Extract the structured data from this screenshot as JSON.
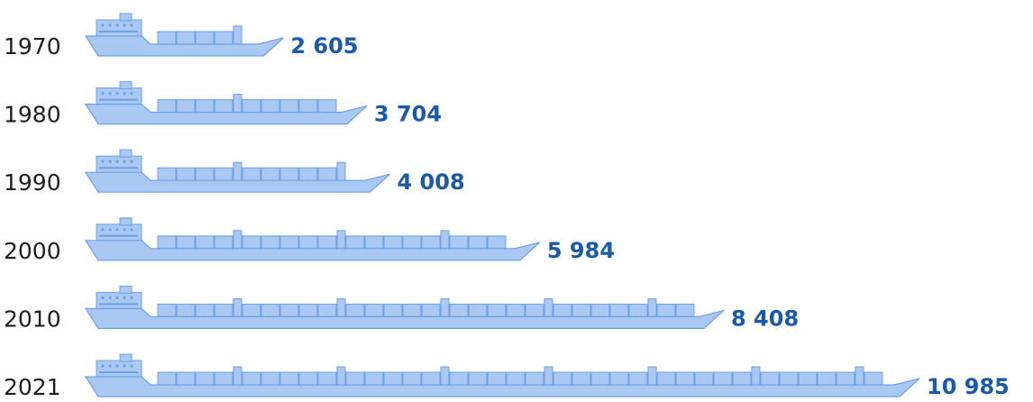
{
  "chart_data": {
    "type": "bar",
    "orientation": "horizontal",
    "categories": [
      "1970",
      "1980",
      "1990",
      "2000",
      "2010",
      "2021"
    ],
    "values": [
      2605,
      3704,
      4008,
      5984,
      8408,
      10985
    ],
    "value_labels": [
      "2 605",
      "3 704",
      "4 008",
      "5 984",
      "8 408",
      "10 985"
    ],
    "color": "#a9c9f2"
  }
}
